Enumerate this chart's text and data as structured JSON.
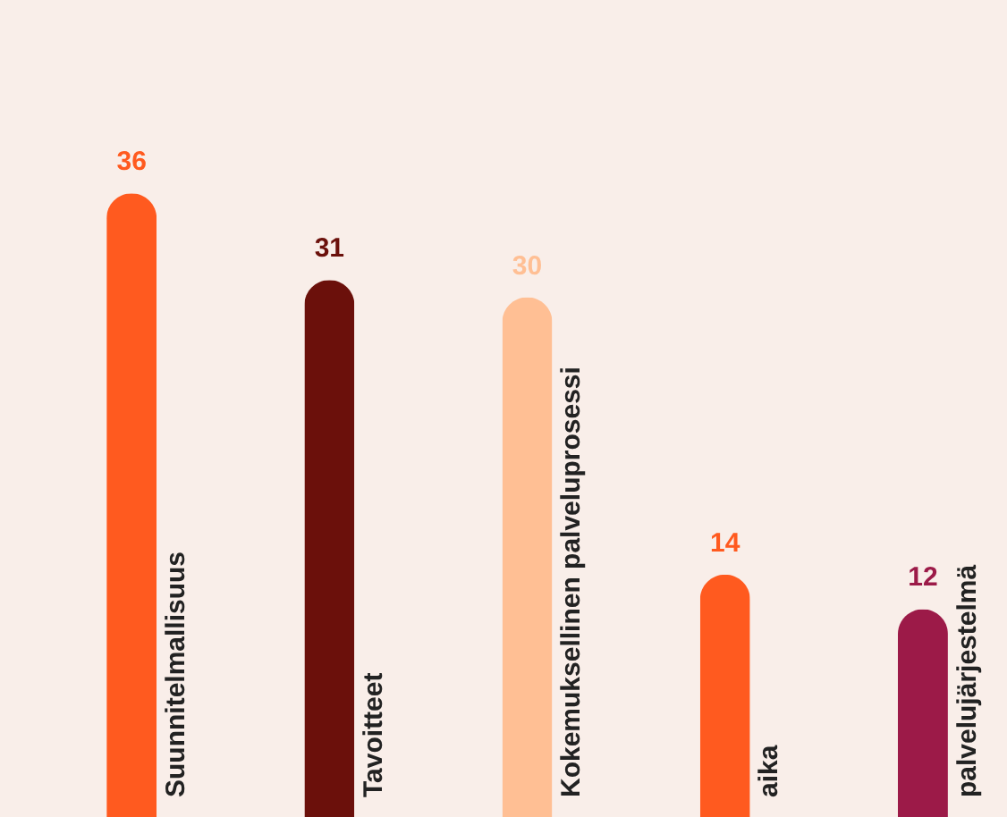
{
  "chart_data": {
    "type": "bar",
    "categories": [
      "Suunnitelmallisuus",
      "Tavoitteet",
      "Kokemuksellinen palveluprosessi",
      "aika",
      "palvelujärjestelmä"
    ],
    "values": [
      36,
      31,
      30,
      14,
      12
    ],
    "colors": [
      "#ff5a1f",
      "#6b100b",
      "#ffbf94",
      "#ff5a1f",
      "#9c1a48"
    ],
    "data_labels": true
  }
}
